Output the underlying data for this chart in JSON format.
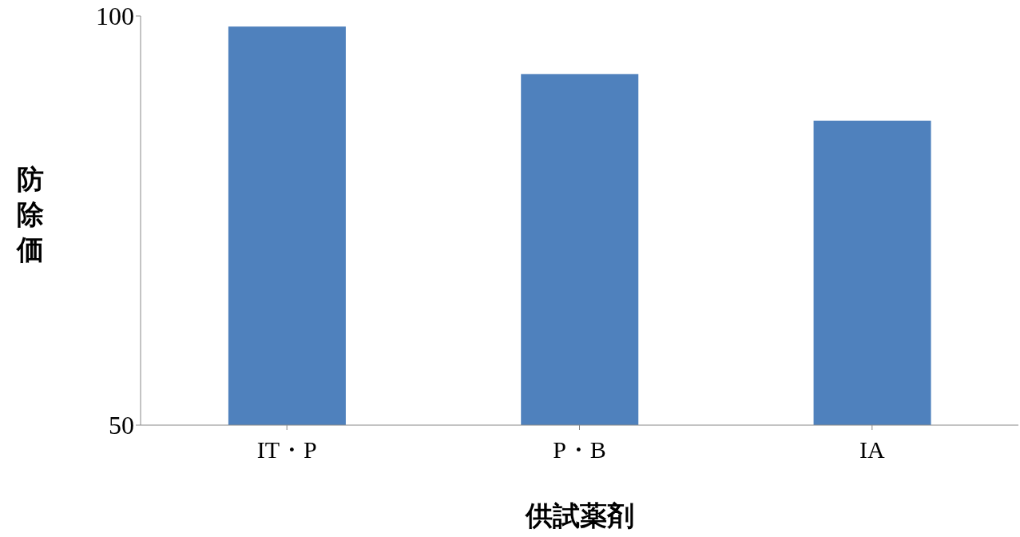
{
  "chart_data": {
    "type": "bar",
    "categories": [
      "IT・P",
      "P・B",
      "IA"
    ],
    "values": [
      98.7,
      92.9,
      87.2
    ],
    "color": "#4f81bd",
    "ylim": [
      50,
      100
    ],
    "yticks": [
      50,
      100
    ],
    "xlabel": "供試薬剤",
    "ylabel": "防除価",
    "grid": false,
    "legend": false
  }
}
